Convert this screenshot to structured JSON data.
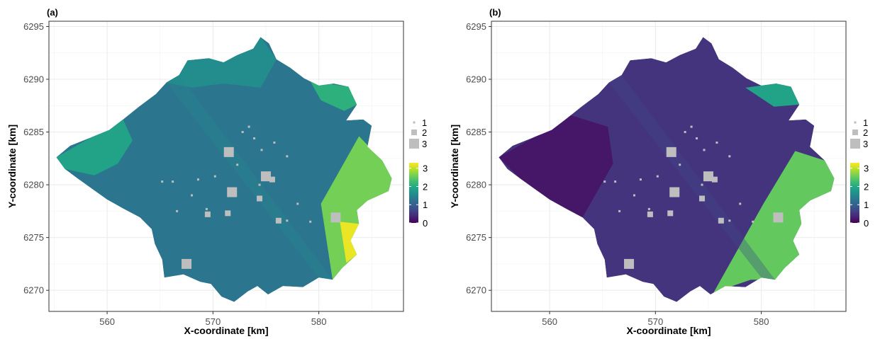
{
  "chart_data": [
    {
      "type": "heatmap",
      "panel_label": "(a)",
      "xlabel": "X-coordinate [km]",
      "ylabel": "Y-coordinate [km]",
      "xlim": [
        554.5,
        588
      ],
      "ylim": [
        6268,
        6295.5
      ],
      "x_ticks": [
        560,
        570,
        580
      ],
      "y_ticks": [
        6270,
        6275,
        6280,
        6285,
        6290,
        6295
      ],
      "grid": true,
      "colorscale": "viridis",
      "colorbar": {
        "range": [
          0,
          3.3
        ],
        "ticks": [
          0,
          1,
          2,
          3
        ]
      },
      "size_legend": {
        "labels": [
          "1",
          "2",
          "3"
        ],
        "values": [
          1,
          2,
          3
        ],
        "color": "#bebebe"
      },
      "overall_level": 1.3,
      "zones": [
        {
          "region": "main body",
          "value": 1.3
        },
        {
          "region": "north",
          "value": 1.6
        },
        {
          "region": "west",
          "value": 1.9
        },
        {
          "region": "north-east",
          "value": 2.1
        },
        {
          "region": "east wedge",
          "value": 2.6
        },
        {
          "region": "south-east tip",
          "value": 3.2
        }
      ],
      "grey_squares": [
        {
          "x": 567.5,
          "y": 6272.5,
          "size": 3
        },
        {
          "x": 571.8,
          "y": 6279.3,
          "size": 3
        },
        {
          "x": 571.5,
          "y": 6283.1,
          "size": 3
        },
        {
          "x": 575.0,
          "y": 6280.8,
          "size": 3
        },
        {
          "x": 581.6,
          "y": 6276.9,
          "size": 3
        },
        {
          "x": 575.6,
          "y": 6280.5,
          "size": 2
        },
        {
          "x": 569.5,
          "y": 6277.2,
          "size": 2
        },
        {
          "x": 571.4,
          "y": 6277.3,
          "size": 2
        },
        {
          "x": 574.4,
          "y": 6278.7,
          "size": 2
        },
        {
          "x": 576.2,
          "y": 6276.6,
          "size": 2
        },
        {
          "x": 574.4,
          "y": 6280.0,
          "size": 1
        },
        {
          "x": 572.3,
          "y": 6281.9,
          "size": 1
        },
        {
          "x": 574.6,
          "y": 6283.3,
          "size": 1
        },
        {
          "x": 573.4,
          "y": 6285.5,
          "size": 1
        },
        {
          "x": 573.9,
          "y": 6284.4,
          "size": 1
        },
        {
          "x": 565.2,
          "y": 6280.3,
          "size": 1
        },
        {
          "x": 566.2,
          "y": 6280.3,
          "size": 1
        },
        {
          "x": 568.6,
          "y": 6280.5,
          "size": 1
        },
        {
          "x": 570.2,
          "y": 6280.8,
          "size": 1
        },
        {
          "x": 568.0,
          "y": 6279.0,
          "size": 1
        },
        {
          "x": 569.4,
          "y": 6277.7,
          "size": 1
        },
        {
          "x": 566.6,
          "y": 6277.5,
          "size": 1
        },
        {
          "x": 578.0,
          "y": 6278.2,
          "size": 1
        },
        {
          "x": 577.0,
          "y": 6282.7,
          "size": 1
        },
        {
          "x": 575.8,
          "y": 6284.0,
          "size": 1
        },
        {
          "x": 577.0,
          "y": 6276.6,
          "size": 1
        },
        {
          "x": 579.2,
          "y": 6276.5,
          "size": 1
        },
        {
          "x": 572.8,
          "y": 6285.0,
          "size": 1
        }
      ]
    },
    {
      "type": "heatmap",
      "panel_label": "(b)",
      "xlabel": "X-coordinate [km]",
      "ylabel": "Y-coordinate [km]",
      "xlim": [
        554.5,
        588
      ],
      "ylim": [
        6268,
        6295.5
      ],
      "x_ticks": [
        560,
        570,
        580
      ],
      "y_ticks": [
        6270,
        6275,
        6280,
        6285,
        6290,
        6295
      ],
      "grid": true,
      "colorscale": "viridis",
      "colorbar": {
        "range": [
          0,
          3.3
        ],
        "ticks": [
          0,
          1,
          2,
          3
        ]
      },
      "size_legend": {
        "labels": [
          "1",
          "2",
          "3"
        ],
        "values": [
          1,
          2,
          3
        ],
        "color": "#bebebe"
      },
      "overall_level": 0.5,
      "zones": [
        {
          "region": "main body",
          "value": 0.5
        },
        {
          "region": "west lobe",
          "value": 0.2
        },
        {
          "region": "north patches",
          "value": 1.9
        },
        {
          "region": "east wedge",
          "value": 2.5
        }
      ],
      "grey_squares": [
        {
          "x": 567.5,
          "y": 6272.5,
          "size": 3
        },
        {
          "x": 571.8,
          "y": 6279.3,
          "size": 3
        },
        {
          "x": 571.5,
          "y": 6283.1,
          "size": 3
        },
        {
          "x": 575.0,
          "y": 6280.8,
          "size": 3
        },
        {
          "x": 581.6,
          "y": 6276.9,
          "size": 3
        },
        {
          "x": 575.6,
          "y": 6280.5,
          "size": 2
        },
        {
          "x": 569.5,
          "y": 6277.2,
          "size": 2
        },
        {
          "x": 571.4,
          "y": 6277.3,
          "size": 2
        },
        {
          "x": 574.4,
          "y": 6278.7,
          "size": 2
        },
        {
          "x": 576.2,
          "y": 6276.6,
          "size": 2
        },
        {
          "x": 574.4,
          "y": 6280.0,
          "size": 1
        },
        {
          "x": 572.3,
          "y": 6281.9,
          "size": 1
        },
        {
          "x": 574.6,
          "y": 6283.3,
          "size": 1
        },
        {
          "x": 573.4,
          "y": 6285.5,
          "size": 1
        },
        {
          "x": 573.9,
          "y": 6284.4,
          "size": 1
        },
        {
          "x": 565.2,
          "y": 6280.3,
          "size": 1
        },
        {
          "x": 566.2,
          "y": 6280.3,
          "size": 1
        },
        {
          "x": 568.6,
          "y": 6280.5,
          "size": 1
        },
        {
          "x": 570.2,
          "y": 6280.8,
          "size": 1
        },
        {
          "x": 568.0,
          "y": 6279.0,
          "size": 1
        },
        {
          "x": 569.4,
          "y": 6277.7,
          "size": 1
        },
        {
          "x": 566.6,
          "y": 6277.5,
          "size": 1
        },
        {
          "x": 578.0,
          "y": 6278.2,
          "size": 1
        },
        {
          "x": 577.0,
          "y": 6282.7,
          "size": 1
        },
        {
          "x": 575.8,
          "y": 6284.0,
          "size": 1
        },
        {
          "x": 577.0,
          "y": 6276.6,
          "size": 1
        },
        {
          "x": 579.2,
          "y": 6276.5,
          "size": 1
        },
        {
          "x": 572.8,
          "y": 6285.0,
          "size": 1
        }
      ]
    }
  ]
}
